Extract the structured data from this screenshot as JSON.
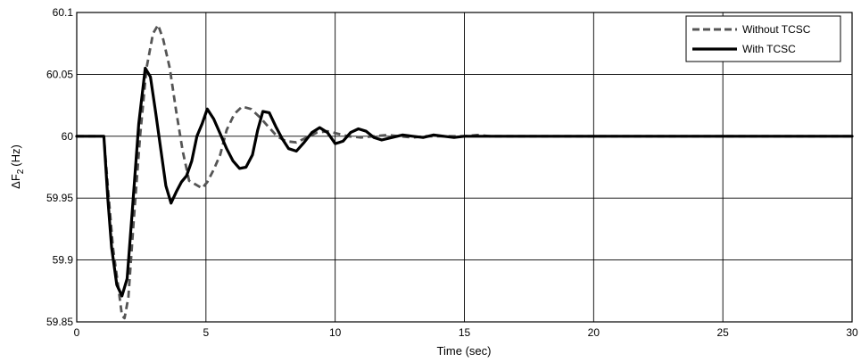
{
  "chart_data": {
    "type": "line",
    "title": "",
    "xlabel": "Time (sec)",
    "ylabel_main": "ΔF",
    "ylabel_sub": "2",
    "ylabel_unit": "(Hz)",
    "xlim": [
      0,
      30
    ],
    "ylim": [
      59.85,
      60.1
    ],
    "x_ticks": [
      0,
      5,
      10,
      15,
      20,
      25,
      30
    ],
    "x_tick_labels": [
      "0",
      "5",
      "10",
      "15",
      "20",
      "25",
      "30"
    ],
    "y_ticks": [
      59.85,
      59.9,
      59.95,
      60,
      60.05,
      60.1
    ],
    "y_tick_labels": [
      "59.85",
      "59.9",
      "59.95",
      "60",
      "60.05",
      "60.1"
    ],
    "grid": true,
    "legend_position": "top-right",
    "series": [
      {
        "name": "Without TCSC",
        "style": "dashed",
        "color": "#555555",
        "x": [
          0,
          1.05,
          1.2,
          1.4,
          1.6,
          1.75,
          1.85,
          2.0,
          2.2,
          2.45,
          2.7,
          2.95,
          3.15,
          3.35,
          3.6,
          3.85,
          4.1,
          4.35,
          4.6,
          4.85,
          5.05,
          5.3,
          5.55,
          5.8,
          6.1,
          6.4,
          6.75,
          7.1,
          7.4,
          7.75,
          8.1,
          8.5,
          8.9,
          9.3,
          9.7,
          10.1,
          10.5,
          11.0,
          11.5,
          12.0,
          12.5,
          13.0,
          13.5,
          14.0,
          14.5,
          15.0,
          15.5,
          16.0,
          30
        ],
        "y": [
          60.0,
          60.0,
          59.96,
          59.91,
          59.88,
          59.855,
          59.853,
          59.87,
          59.93,
          60.0,
          60.055,
          60.083,
          60.09,
          60.078,
          60.055,
          60.02,
          59.988,
          59.964,
          59.961,
          59.958,
          59.963,
          59.973,
          59.985,
          60.005,
          60.018,
          60.024,
          60.022,
          60.015,
          60.008,
          60.0,
          59.996,
          59.995,
          59.999,
          60.003,
          60.004,
          60.002,
          60.0,
          59.999,
          60.0,
          60.001,
          60.0,
          59.999,
          60.0,
          60.0,
          60.0,
          60.0,
          60.001,
          60.0,
          60.0
        ]
      },
      {
        "name": "With TCSC",
        "style": "solid",
        "color": "#000000",
        "x": [
          0,
          0.95,
          1.05,
          1.2,
          1.35,
          1.55,
          1.75,
          1.95,
          2.15,
          2.4,
          2.65,
          2.85,
          3.05,
          3.25,
          3.45,
          3.65,
          3.85,
          4.05,
          4.25,
          4.45,
          4.65,
          4.85,
          5.05,
          5.3,
          5.55,
          5.8,
          6.05,
          6.3,
          6.55,
          6.8,
          7.0,
          7.2,
          7.45,
          7.7,
          7.95,
          8.2,
          8.5,
          8.8,
          9.1,
          9.4,
          9.7,
          10.0,
          10.3,
          10.6,
          10.9,
          11.2,
          11.5,
          11.8,
          12.2,
          12.6,
          13.0,
          13.4,
          13.8,
          14.2,
          14.6,
          15.0,
          15.4,
          15.8,
          16.2,
          30
        ],
        "y": [
          60.0,
          60.0,
          60.0,
          59.95,
          59.91,
          59.88,
          59.871,
          59.885,
          59.94,
          60.01,
          60.055,
          60.048,
          60.02,
          59.99,
          59.96,
          59.946,
          59.955,
          59.963,
          59.968,
          59.98,
          60.0,
          60.01,
          60.022,
          60.014,
          60.002,
          59.99,
          59.98,
          59.974,
          59.975,
          59.985,
          60.005,
          60.02,
          60.019,
          60.008,
          59.998,
          59.99,
          59.988,
          59.995,
          60.003,
          60.007,
          60.003,
          59.994,
          59.996,
          60.003,
          60.006,
          60.004,
          59.999,
          59.997,
          59.999,
          60.001,
          60.0,
          59.999,
          60.001,
          60.0,
          59.999,
          60.0,
          60.0,
          60.0,
          60.0,
          60.0
        ]
      }
    ]
  }
}
